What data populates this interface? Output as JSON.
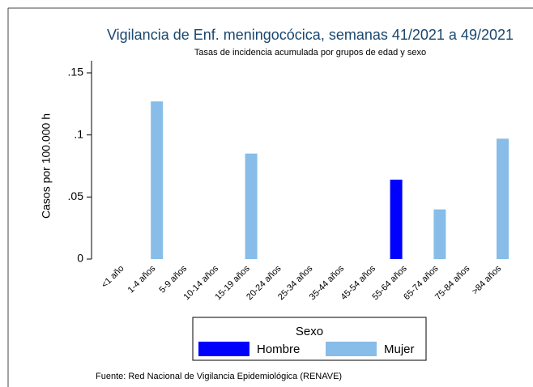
{
  "chart_data": {
    "type": "bar",
    "title": "Vigilancia de Enf. meningocócica, semanas 41/2021 a 49/2021",
    "subtitle": "Tasas de incidencia acumulada por grupos de edad y sexo",
    "y_label": "Casos por 100.000 h",
    "categories": [
      "<1 año",
      "1-4 años",
      "5-9 años",
      "10-14 años",
      "15-19 años",
      "20-24 años",
      "25-34 años",
      "35-44 años",
      "45-54 años",
      "55-64 años",
      "65-74 años",
      "75-84 años",
      ">84 años"
    ],
    "series": [
      {
        "name": "Hombre",
        "color": "#0000ff",
        "values": [
          0,
          0,
          0,
          0,
          0,
          0,
          0,
          0,
          0,
          0.064,
          0,
          0,
          0
        ]
      },
      {
        "name": "Mujer",
        "color": "#87bde8",
        "values": [
          0,
          0.127,
          0,
          0,
          0.085,
          0,
          0,
          0,
          0,
          0,
          0.04,
          0,
          0.097
        ]
      }
    ],
    "ylim": [
      0,
      0.15
    ],
    "yticks": [
      0,
      {
        "value": 0.05,
        "label": ".05"
      },
      {
        "value": 0.1,
        "label": ".1"
      },
      {
        "value": 0.15,
        "label": ".15"
      }
    ],
    "legend_title": "Sexo",
    "legend": "bottom",
    "source": "Fuente: Red Nacional de Vigilancia Epidemiológica (RENAVE)"
  }
}
